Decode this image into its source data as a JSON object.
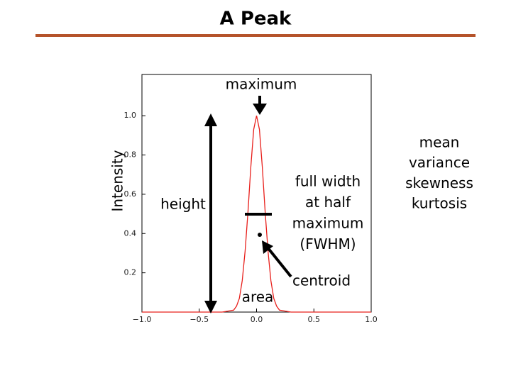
{
  "header": {
    "title": "A Peak"
  },
  "chart_data": {
    "type": "line",
    "y_label": "Intensity",
    "x": [
      -1,
      -0.3,
      -0.2,
      -0.175,
      -0.15,
      -0.125,
      -0.1,
      -0.075,
      -0.05,
      -0.025,
      0,
      0.025,
      0.05,
      0.075,
      0.1,
      0.125,
      0.15,
      0.175,
      0.2,
      0.3,
      1
    ],
    "series": [
      {
        "color": "#e8201c",
        "values": [
          0,
          0,
          0.01,
          0.03,
          0.07,
          0.16,
          0.31,
          0.51,
          0.74,
          0.93,
          1,
          0.93,
          0.74,
          0.51,
          0.31,
          0.16,
          0.07,
          0.03,
          0.01,
          0,
          0
        ]
      }
    ],
    "xlim": [
      -1,
      1
    ],
    "ylim": [
      0,
      1.21
    ],
    "xticks": [
      {
        "value": -1,
        "label": "−1.0"
      },
      {
        "value": -0.5,
        "label": "−0.5"
      },
      {
        "value": 0,
        "label": "0.0"
      },
      {
        "value": 0.5,
        "label": "0.5"
      },
      {
        "value": 1,
        "label": "1.0"
      }
    ],
    "yticks": [
      0.2,
      0.4,
      0.6,
      0.8,
      {
        "value": 1,
        "label": "1.0"
      }
    ],
    "annotations": {
      "maximum": "maximum",
      "height": "height",
      "fwhm": [
        "full width",
        "at half",
        "maximum",
        "(FWHM)"
      ],
      "centroid": "centroid",
      "area": "area"
    }
  },
  "side_list": [
    "mean",
    "variance",
    "skewness",
    "kurtosis"
  ]
}
